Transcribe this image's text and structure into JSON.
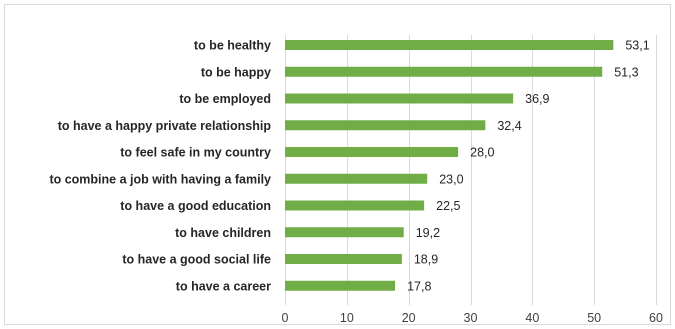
{
  "chart_data": {
    "type": "bar",
    "orientation": "horizontal",
    "title": "",
    "xlabel": "",
    "ylabel": "",
    "categories": [
      "to be healthy",
      "to be happy",
      "to be employed",
      "to have a happy private relationship",
      "to feel safe in my country",
      "to combine a job with having a family",
      "to have a good education",
      "to have children",
      "to have a good social life",
      "to have a career"
    ],
    "values": [
      53.1,
      51.3,
      36.9,
      32.4,
      28.0,
      23.0,
      22.5,
      19.2,
      18.9,
      17.8
    ],
    "value_labels": [
      "53,1",
      "51,3",
      "36,9",
      "32,4",
      "28,0",
      "23,0",
      "22,5",
      "19,2",
      "18,9",
      "17,8"
    ],
    "xlim": [
      0,
      60
    ],
    "xticks": [
      0,
      10,
      20,
      30,
      40,
      50,
      60
    ],
    "grid": "vertical",
    "legend": "none",
    "colors": {
      "bar": "#70ad47",
      "grid": "#d9d9d9",
      "text": "#262626"
    }
  }
}
